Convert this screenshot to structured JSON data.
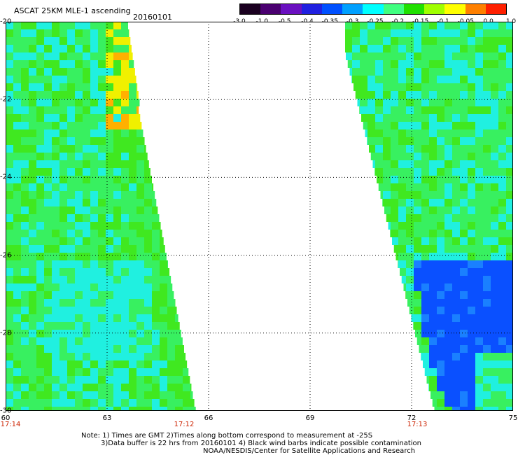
{
  "header": {
    "title": "ASCAT 25KM MLE-1 ascending",
    "date": "20160101"
  },
  "colorbar": {
    "labels": [
      "-3.0",
      "-1.0",
      "-0.5",
      "-0.4",
      "-0.35",
      "-0.3",
      "-0.25",
      "-0.2",
      "-0.15",
      "-0.1",
      "-0.05",
      "0.0",
      "1.0"
    ],
    "colors": [
      "#1a0020",
      "#4a0070",
      "#6a10c0",
      "#2020e0",
      "#0050ff",
      "#00a0ff",
      "#00ffff",
      "#40ff80",
      "#20e000",
      "#a0ff00",
      "#ffff00",
      "#ff8000",
      "#ff2000"
    ]
  },
  "axes": {
    "y_labels": [
      "-20",
      "-22",
      "-24",
      "-26",
      "-28",
      "-30"
    ],
    "x_labels": [
      "60",
      "63",
      "66",
      "69",
      "72",
      "75"
    ],
    "time_labels": [
      "17:14",
      "17:12",
      "17:13"
    ]
  },
  "notes": {
    "line1": "Note: 1) Times are GMT 2)Times along bottom correspond to measurement at -25S",
    "line2": "3)Data buffer is 22 hrs from 20160101 4) Black wind barbs indicate possible contamination",
    "line3": "NOAA/NESDIS/Center for Satellite Applications and Research"
  },
  "palette": {
    "green": "#38f060",
    "cyan": "#20f0e0",
    "lime": "#40e820",
    "yellow": "#f0f000",
    "orange": "#ffb000",
    "blue": "#0a50ff"
  }
}
